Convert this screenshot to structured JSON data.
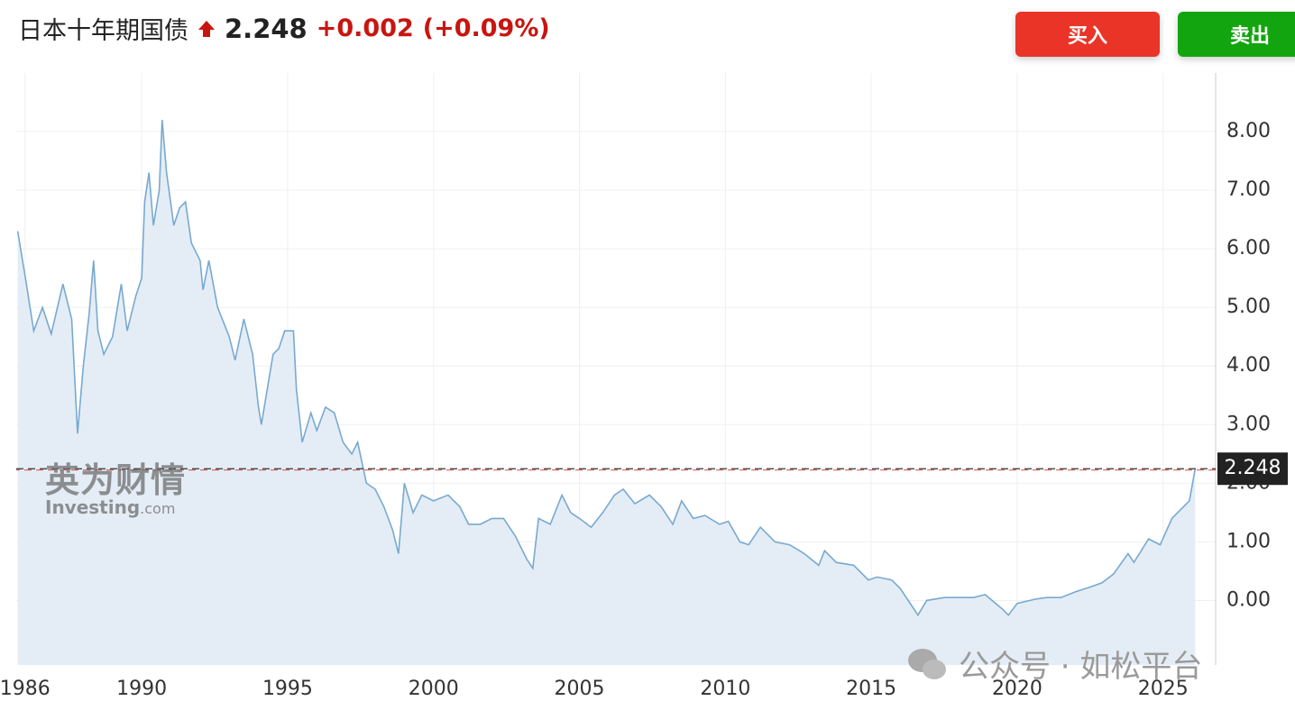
{
  "header": {
    "title": "日本十年期国债",
    "change": "+0.002",
    "change_pct": "(+0.09%)"
  },
  "buttons": {
    "buy": "买入",
    "sell": "卖出"
  },
  "watermarks": {
    "logo_cn": "英为财情",
    "logo_en": "Investing",
    "logo_suffix": ".com",
    "wechat": "公众号 · 如松平台"
  },
  "chart_data": {
    "type": "area",
    "current": 2.248,
    "color": "#78a9d0",
    "fill": "#e4edf6",
    "xlim": [
      1985.7,
      2026.8
    ],
    "ylim": [
      -1.1,
      9.0
    ],
    "xticks": [
      1986,
      1990,
      1995,
      2000,
      2005,
      2010,
      2015,
      2020,
      2025
    ],
    "yticks": [
      {
        "value": 0,
        "label": "0.00"
      },
      {
        "value": 1,
        "label": "1.00"
      },
      {
        "value": 2,
        "label": "2.00"
      },
      {
        "value": 3,
        "label": "3.00"
      },
      {
        "value": 4,
        "label": "4.00"
      },
      {
        "value": 5,
        "label": "5.00"
      },
      {
        "value": 6,
        "label": "6.00"
      },
      {
        "value": 7,
        "label": "7.00"
      },
      {
        "value": 8,
        "label": "8.00"
      }
    ],
    "grid": true,
    "x": [
      1985.75,
      1986.0,
      1986.3,
      1986.6,
      1986.9,
      1987.3,
      1987.6,
      1987.8,
      1988.0,
      1988.2,
      1988.35,
      1988.5,
      1988.7,
      1989.0,
      1989.3,
      1989.5,
      1989.8,
      1990.0,
      1990.1,
      1990.25,
      1990.4,
      1990.6,
      1990.7,
      1990.85,
      1991.1,
      1991.3,
      1991.5,
      1991.7,
      1992.0,
      1992.1,
      1992.3,
      1992.6,
      1993.0,
      1993.2,
      1993.5,
      1993.8,
      1994.0,
      1994.1,
      1994.3,
      1994.5,
      1994.7,
      1994.9,
      1995.2,
      1995.3,
      1995.5,
      1995.8,
      1996.0,
      1996.3,
      1996.6,
      1996.9,
      1997.2,
      1997.4,
      1997.7,
      1998.0,
      1998.3,
      1998.6,
      1998.8,
      1999.0,
      1999.3,
      1999.6,
      2000.0,
      2000.5,
      2000.9,
      2001.2,
      2001.6,
      2002.0,
      2002.4,
      2002.8,
      2003.2,
      2003.4,
      2003.6,
      2004.0,
      2004.4,
      2004.7,
      2005.0,
      2005.4,
      2005.8,
      2006.2,
      2006.5,
      2006.9,
      2007.4,
      2007.8,
      2008.2,
      2008.5,
      2008.9,
      2009.3,
      2009.8,
      2010.1,
      2010.5,
      2010.8,
      2011.2,
      2011.7,
      2012.2,
      2012.7,
      2013.2,
      2013.4,
      2013.8,
      2014.4,
      2014.9,
      2015.2,
      2015.7,
      2016.0,
      2016.4,
      2016.6,
      2016.9,
      2017.5,
      2018.0,
      2018.5,
      2018.9,
      2019.5,
      2019.7,
      2020.0,
      2020.6,
      2021.0,
      2021.5,
      2022.0,
      2022.5,
      2022.9,
      2023.3,
      2023.8,
      2024.0,
      2024.5,
      2024.9,
      2025.3,
      2025.6,
      2025.9,
      2026.1
    ],
    "values": [
      6.3,
      5.55,
      4.6,
      5.0,
      4.55,
      5.4,
      4.8,
      2.85,
      4.0,
      4.9,
      5.8,
      4.6,
      4.2,
      4.5,
      5.4,
      4.6,
      5.2,
      5.5,
      6.8,
      7.3,
      6.4,
      7.0,
      8.2,
      7.3,
      6.4,
      6.7,
      6.8,
      6.1,
      5.8,
      5.3,
      5.8,
      5.0,
      4.5,
      4.1,
      4.8,
      4.2,
      3.3,
      3.0,
      3.6,
      4.2,
      4.3,
      4.6,
      4.6,
      3.6,
      2.7,
      3.2,
      2.9,
      3.3,
      3.2,
      2.7,
      2.5,
      2.7,
      2.0,
      1.9,
      1.6,
      1.2,
      0.8,
      2.0,
      1.5,
      1.8,
      1.7,
      1.8,
      1.6,
      1.3,
      1.3,
      1.4,
      1.4,
      1.1,
      0.7,
      0.55,
      1.4,
      1.3,
      1.8,
      1.5,
      1.4,
      1.25,
      1.5,
      1.8,
      1.9,
      1.65,
      1.8,
      1.6,
      1.3,
      1.7,
      1.4,
      1.45,
      1.3,
      1.35,
      1.0,
      0.95,
      1.25,
      1.0,
      0.95,
      0.8,
      0.6,
      0.85,
      0.65,
      0.6,
      0.35,
      0.4,
      0.35,
      0.2,
      -0.1,
      -0.25,
      0.0,
      0.05,
      0.05,
      0.05,
      0.1,
      -0.15,
      -0.25,
      -0.05,
      0.02,
      0.05,
      0.05,
      0.15,
      0.23,
      0.3,
      0.45,
      0.8,
      0.65,
      1.05,
      0.95,
      1.4,
      1.55,
      1.7,
      2.248
    ]
  }
}
